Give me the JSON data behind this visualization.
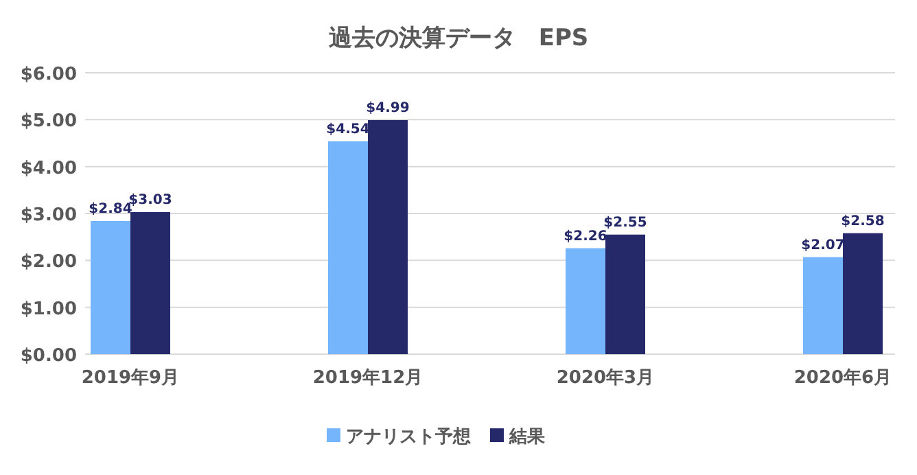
{
  "chart_data": {
    "type": "bar",
    "title": "過去の決算データ　EPS",
    "categories": [
      "2019年9月",
      "2019年12月",
      "2020年3月",
      "2020年6月"
    ],
    "series": [
      {
        "name": "アナリスト予想",
        "color": "#74b5fb",
        "values": [
          2.84,
          4.54,
          2.26,
          2.07
        ],
        "value_labels": [
          "$2.84",
          "$4.54",
          "$2.26",
          "$2.07"
        ]
      },
      {
        "name": "結果",
        "color": "#262969",
        "values": [
          3.03,
          4.99,
          2.55,
          2.58
        ],
        "value_labels": [
          "$3.03",
          "$4.99",
          "$2.55",
          "$2.58"
        ]
      }
    ],
    "ylim": [
      0,
      6
    ],
    "yticks": [
      {
        "value": 0,
        "label": "$0.00"
      },
      {
        "value": 1,
        "label": "$1.00"
      },
      {
        "value": 2,
        "label": "$2.00"
      },
      {
        "value": 3,
        "label": "$3.00"
      },
      {
        "value": 4,
        "label": "$4.00"
      },
      {
        "value": 5,
        "label": "$5.00"
      },
      {
        "value": 6,
        "label": "$6.00"
      }
    ],
    "grid": "y",
    "legend": "bottom"
  }
}
